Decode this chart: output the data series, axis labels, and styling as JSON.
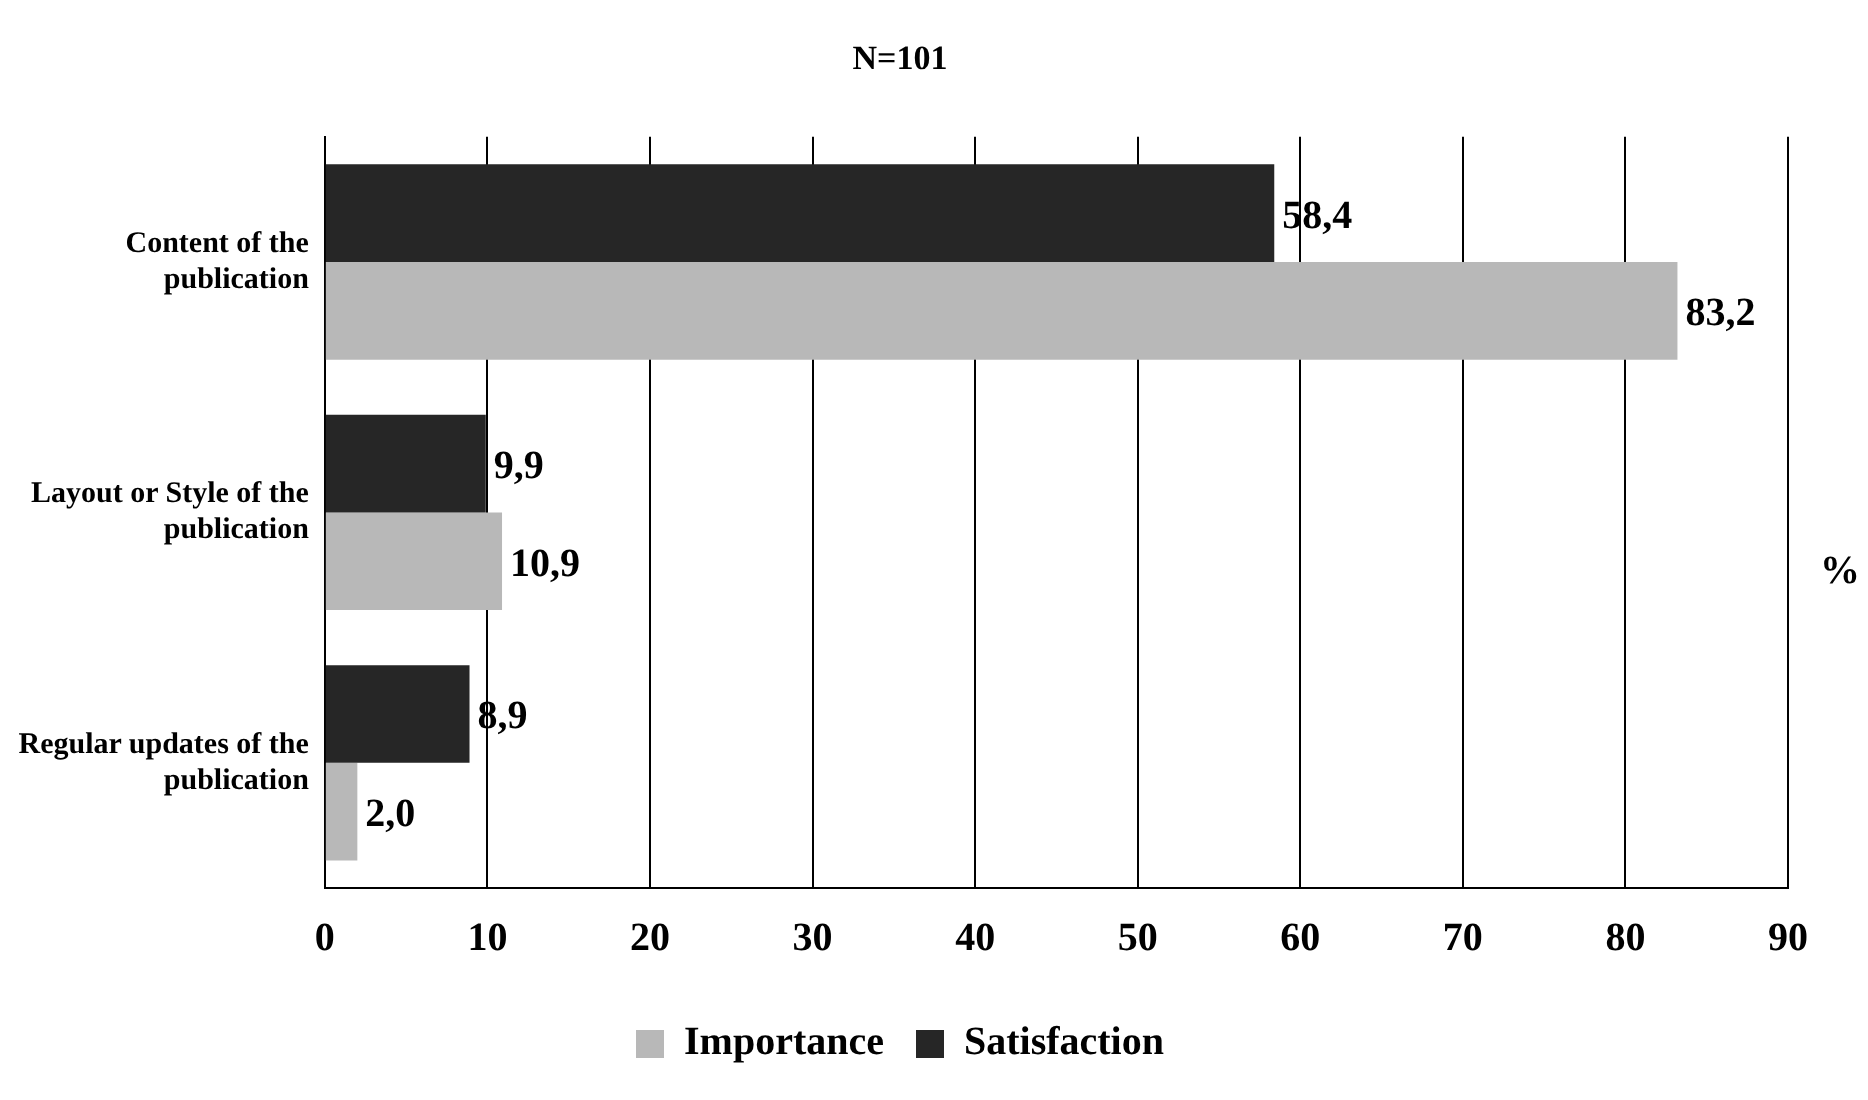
{
  "chart_data": {
    "type": "bar",
    "orientation": "horizontal",
    "title": "N=101",
    "xlabel": "%",
    "categories": [
      "Content of the publication",
      "Layout or Style of the publication",
      "Regular updates of the publication"
    ],
    "series": [
      {
        "name": "Importance",
        "color": "#b8b8b8",
        "values": [
          83.2,
          10.9,
          2.0
        ],
        "value_labels": [
          "83,2",
          "10,9",
          "2,0"
        ]
      },
      {
        "name": "Satisfaction",
        "color": "#262626",
        "values": [
          58.4,
          9.9,
          8.9
        ],
        "value_labels": [
          "58,4",
          "9,9",
          "8,9"
        ]
      }
    ],
    "xlim": [
      0,
      90
    ],
    "xticks": [
      0,
      10,
      20,
      30,
      40,
      50,
      60,
      70,
      80,
      90
    ],
    "grid": "x",
    "legend": "bottom"
  }
}
